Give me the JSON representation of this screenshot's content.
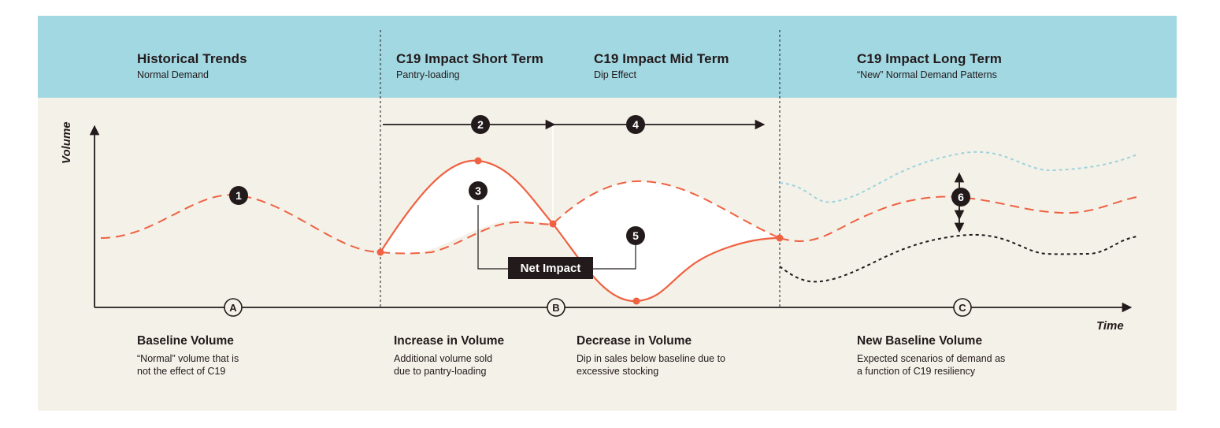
{
  "phases": [
    {
      "title": "Historical Trends",
      "subtitle": "Normal Demand"
    },
    {
      "title": "C19 Impact Short Term",
      "subtitle": "Pantry-loading"
    },
    {
      "title": "C19 Impact Mid Term",
      "subtitle": "Dip Effect"
    },
    {
      "title": "C19 Impact Long Term",
      "subtitle": "“New” Normal Demand Patterns"
    }
  ],
  "descriptions": [
    {
      "title": "Baseline Volume",
      "line1": "“Normal” volume that is",
      "line2": "not the effect of C19"
    },
    {
      "title": "Increase in Volume",
      "line1": "Additional volume sold",
      "line2": "due to pantry-loading"
    },
    {
      "title": "Decrease in Volume",
      "line1": "Dip in sales below baseline due to",
      "line2": "excessive stocking"
    },
    {
      "title": "New Baseline Volume",
      "line1": "Expected scenarios of demand as",
      "line2": "a function of C19 resiliency"
    }
  ],
  "axes": {
    "y_label": "Volume",
    "x_label": "Time"
  },
  "markers": {
    "numbered": [
      "1",
      "2",
      "3",
      "4",
      "5",
      "6"
    ],
    "lettered": [
      "A",
      "B",
      "C"
    ]
  },
  "net_impact_label": "Net Impact",
  "colors": {
    "header_band": "#a1d8e2",
    "background": "#f4f1e8",
    "actual_line": "#ef6142",
    "baseline_dash": "#ef6142",
    "high_scenario": "#9dd3dd",
    "low_scenario": "#231a1c",
    "dark": "#231a1c"
  }
}
